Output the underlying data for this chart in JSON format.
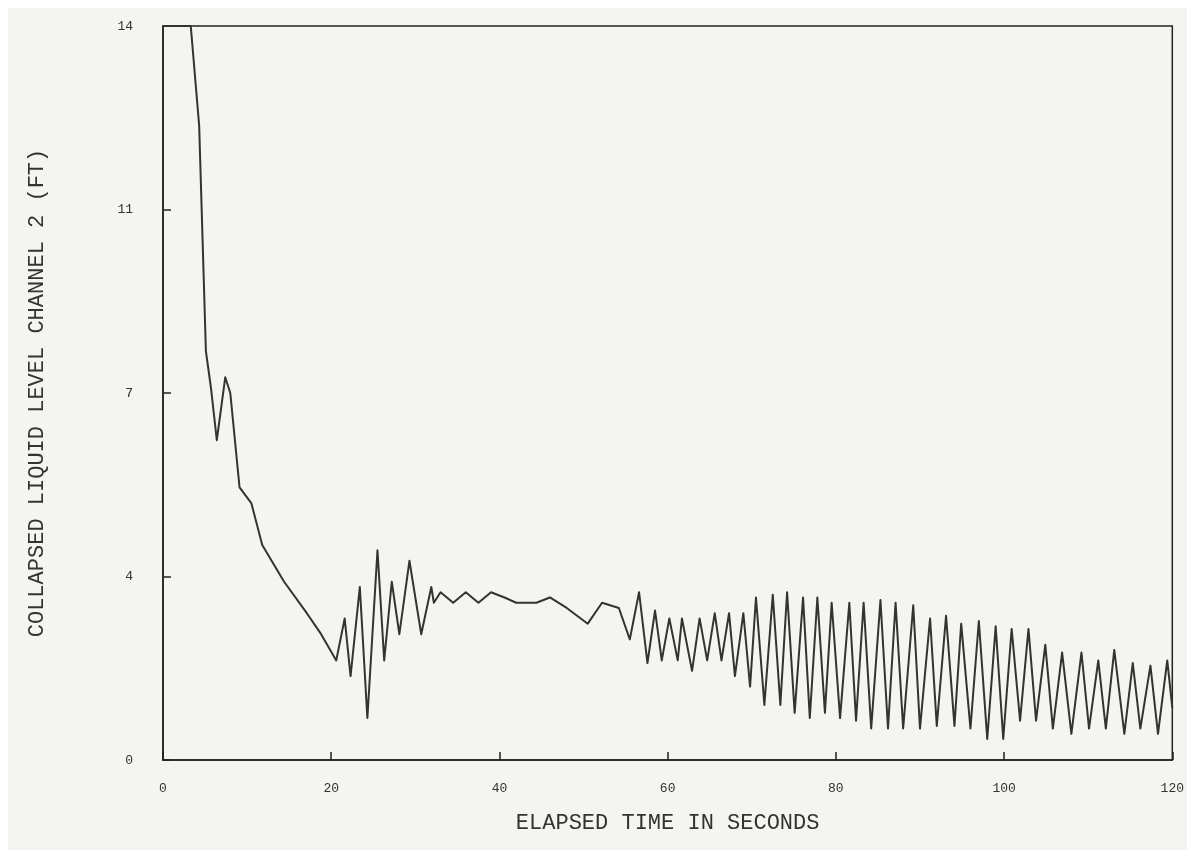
{
  "chart_data": {
    "type": "line",
    "xlabel": "ELAPSED TIME IN SECONDS",
    "ylabel": "COLLAPSED LIQUID LEVEL CHANNEL 2 (FT)",
    "xlim": [
      0,
      120
    ],
    "ylim": [
      0,
      14
    ],
    "xticks": [
      0,
      20,
      40,
      60,
      80,
      100,
      120
    ],
    "yticks": [
      0,
      {
        "value": 3.5,
        "label": "4"
      },
      7,
      {
        "value": 10.5,
        "label": "11"
      },
      14
    ],
    "marker": "none",
    "line_style": "solid",
    "series": [
      {
        "color": "#333333",
        "x": [
          0,
          3.3,
          4.3,
          5.1,
          5.7,
          6.4,
          7.4,
          8.0,
          9.1,
          10.5,
          11.8,
          14.4,
          17.1,
          18.8,
          20.6,
          21.6,
          22.3,
          23.4,
          24.3,
          25.5,
          26.3,
          27.2,
          28.1,
          29.3,
          30.7,
          31.9,
          32.2,
          33.0,
          34.5,
          36.0,
          37.5,
          39.0,
          40.6,
          42.0,
          44.4,
          46.0,
          48.0,
          50.5,
          52.2,
          54.2,
          55.5,
          56.6,
          57.6,
          58.5,
          59.3,
          60.2,
          61.2,
          61.7,
          62.9,
          63.8,
          64.7,
          65.6,
          66.4,
          67.3,
          68.0,
          69.0,
          69.8,
          70.5,
          71.5,
          72.5,
          73.4,
          74.2,
          75.1,
          76.1,
          76.9,
          77.8,
          78.7,
          79.5,
          80.5,
          81.6,
          82.4,
          83.3,
          84.2,
          85.3,
          86.2,
          87.1,
          88.0,
          89.2,
          90.0,
          91.2,
          92.0,
          93.1,
          94.1,
          94.9,
          96.0,
          97.0,
          98.0,
          99.0,
          99.9,
          100.9,
          101.9,
          102.9,
          103.8,
          104.9,
          105.8,
          106.9,
          108.0,
          109.2,
          110.1,
          111.2,
          112.1,
          113.1,
          114.3,
          115.3,
          116.2,
          117.4,
          118.3,
          119.4,
          120
        ],
        "values": [
          14,
          14,
          12.1,
          7.8,
          7.1,
          6.1,
          7.3,
          7.0,
          5.2,
          4.9,
          4.1,
          3.4,
          2.8,
          2.4,
          1.9,
          2.7,
          1.6,
          3.3,
          0.8,
          4.0,
          1.9,
          3.4,
          2.4,
          3.8,
          2.4,
          3.3,
          3.0,
          3.2,
          3.0,
          3.2,
          3.0,
          3.2,
          3.1,
          3.0,
          3.0,
          3.1,
          2.9,
          2.6,
          3.0,
          2.9,
          2.3,
          3.2,
          1.85,
          2.85,
          1.9,
          2.7,
          1.9,
          2.7,
          1.7,
          2.7,
          1.9,
          2.8,
          1.9,
          2.8,
          1.6,
          2.8,
          1.4,
          3.1,
          1.05,
          3.15,
          1.05,
          3.2,
          0.9,
          3.1,
          0.8,
          3.1,
          0.9,
          3.0,
          0.8,
          3.0,
          0.75,
          3.0,
          0.6,
          3.05,
          0.6,
          3.0,
          0.6,
          2.95,
          0.6,
          2.7,
          0.65,
          2.75,
          0.65,
          2.6,
          0.6,
          2.65,
          0.4,
          2.55,
          0.4,
          2.5,
          0.75,
          2.5,
          0.75,
          2.2,
          0.6,
          2.05,
          0.5,
          2.05,
          0.6,
          1.9,
          0.6,
          2.1,
          0.5,
          1.85,
          0.6,
          1.8,
          0.5,
          1.9,
          1.0
        ]
      }
    ]
  }
}
